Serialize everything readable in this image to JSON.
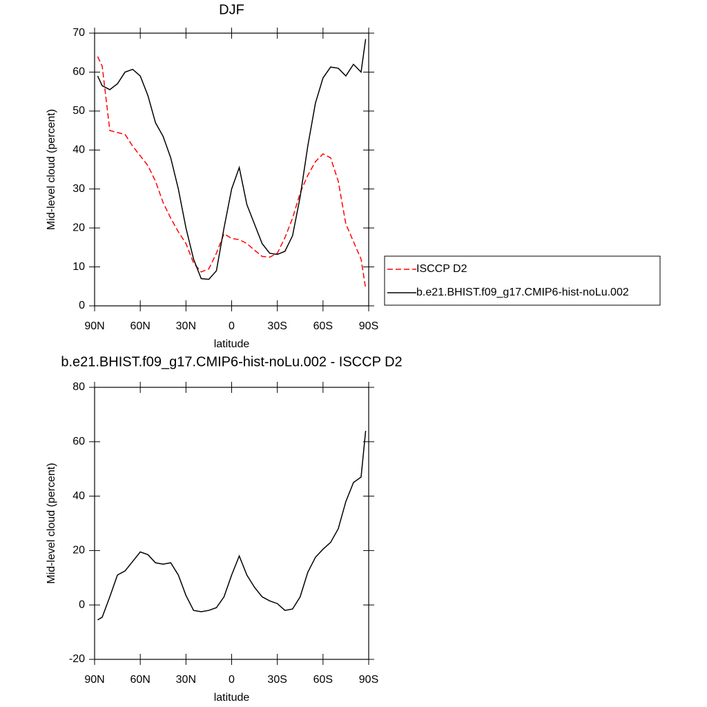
{
  "chart_data": [
    {
      "type": "line",
      "title": "DJF",
      "xlabel": "latitude",
      "ylabel": "Mid-level cloud (percent)",
      "x": [
        88,
        85,
        80,
        75,
        70,
        65,
        60,
        55,
        50,
        45,
        40,
        35,
        30,
        25,
        20,
        15,
        10,
        5,
        0,
        -5,
        -10,
        -15,
        -20,
        -25,
        -30,
        -35,
        -40,
        -45,
        -50,
        -55,
        -60,
        -65,
        -70,
        -75,
        -80,
        -85,
        -88
      ],
      "series": [
        {
          "name": "ISCCP D2",
          "color": "#ff0000",
          "dash": true,
          "values": [
            64,
            61.5,
            45,
            44.5,
            44,
            41,
            38.5,
            36,
            32,
            26.5,
            22.5,
            19,
            16,
            11,
            8.7,
            9.5,
            13.5,
            18.5,
            17.3,
            17,
            16,
            14.3,
            12.7,
            12.5,
            13.5,
            17.5,
            22.5,
            29,
            33.5,
            37,
            39,
            38,
            32,
            21,
            16.5,
            12,
            4.5
          ]
        },
        {
          "name": "b.e21.BHIST.f09_g17.CMIP6-hist-noLu.002",
          "color": "#000000",
          "dash": false,
          "values": [
            59,
            56.5,
            55.5,
            57,
            60,
            60.7,
            59,
            54,
            47,
            43.5,
            38,
            30,
            20,
            12,
            7,
            6.8,
            9,
            20,
            30,
            35.5,
            26,
            21,
            16,
            13.5,
            13.2,
            14,
            18,
            28,
            41,
            52,
            58.5,
            61.3,
            61,
            59,
            62,
            60,
            68.5
          ]
        }
      ],
      "xlim": [
        90,
        -90
      ],
      "xticks": [
        {
          "value": 90,
          "label": "90N"
        },
        {
          "value": 60,
          "label": "60N"
        },
        {
          "value": 30,
          "label": "30N"
        },
        0,
        {
          "value": -30,
          "label": "30S"
        },
        {
          "value": -60,
          "label": "60S"
        },
        {
          "value": -90,
          "label": "90S"
        }
      ],
      "ylim": [
        0,
        70
      ],
      "yticks": [
        0,
        10,
        20,
        30,
        40,
        50,
        60,
        70
      ],
      "legend": "right"
    },
    {
      "type": "line",
      "title": "b.e21.BHIST.f09_g17.CMIP6-hist-noLu.002 - ISCCP D2",
      "xlabel": "latitude",
      "ylabel": "Mid-level cloud (percent)",
      "x": [
        88,
        85,
        80,
        75,
        70,
        65,
        60,
        55,
        50,
        45,
        40,
        35,
        30,
        25,
        20,
        15,
        10,
        5,
        0,
        -5,
        -10,
        -15,
        -20,
        -25,
        -30,
        -35,
        -40,
        -45,
        -50,
        -55,
        -60,
        -65,
        -70,
        -75,
        -80,
        -85,
        -88
      ],
      "series": [
        {
          "color": "#000000",
          "dash": false,
          "values": [
            -5.5,
            -4.5,
            3,
            11,
            12.5,
            16,
            19.5,
            18.5,
            15.5,
            15,
            15.5,
            11,
            3.5,
            -2,
            -2.5,
            -2,
            -1,
            3,
            11,
            18,
            11,
            6.5,
            3,
            1.5,
            0.5,
            -2,
            -1.5,
            3,
            12,
            17.5,
            20.5,
            23,
            28,
            38,
            45,
            47,
            64
          ]
        }
      ],
      "xlim": [
        90,
        -90
      ],
      "xticks": [
        {
          "value": 90,
          "label": "90N"
        },
        {
          "value": 60,
          "label": "60N"
        },
        {
          "value": 30,
          "label": "30N"
        },
        0,
        {
          "value": -30,
          "label": "30S"
        },
        {
          "value": -60,
          "label": "60S"
        },
        {
          "value": -90,
          "label": "90S"
        }
      ],
      "ylim": [
        -20,
        80
      ],
      "yticks": [
        -20,
        0,
        20,
        40,
        60,
        80
      ]
    }
  ]
}
